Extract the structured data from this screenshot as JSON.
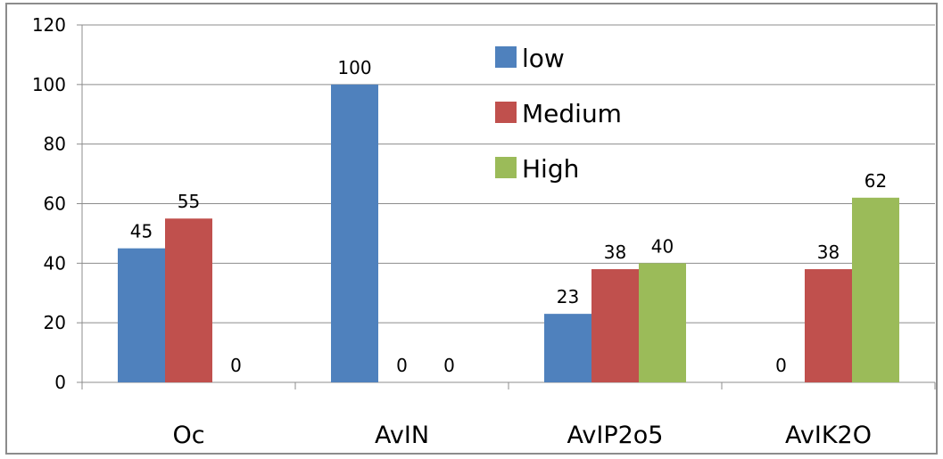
{
  "chart_data": {
    "type": "bar",
    "categories": [
      "Oc",
      "AvIN",
      "AvIP2o5",
      "AvIK2O"
    ],
    "series": [
      {
        "name": "low",
        "values": [
          45,
          100,
          23,
          0
        ],
        "color": "#4f81bd"
      },
      {
        "name": "Medium",
        "values": [
          55,
          0,
          38,
          38
        ],
        "color": "#c0504d"
      },
      {
        "name": "High",
        "values": [
          0,
          0,
          40,
          62
        ],
        "color": "#9bbb59"
      }
    ],
    "ylim": [
      0,
      120
    ],
    "yticks": [
      0,
      20,
      40,
      60,
      80,
      100,
      120
    ],
    "grid": true,
    "legend_placement": "top-center",
    "title": "",
    "xlabel": "",
    "ylabel": ""
  }
}
